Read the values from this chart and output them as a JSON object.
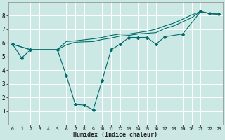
{
  "xlabel": "Humidex (Indice chaleur)",
  "bg_color": "#cce8e4",
  "line_color": "#006b6b",
  "grid_color": "#ffffff",
  "xlim": [
    -0.5,
    23.5
  ],
  "ylim": [
    0,
    9
  ],
  "xticks": [
    0,
    1,
    2,
    3,
    4,
    5,
    6,
    7,
    8,
    9,
    10,
    11,
    12,
    13,
    14,
    15,
    16,
    17,
    18,
    19,
    20,
    21,
    22,
    23
  ],
  "yticks": [
    1,
    2,
    3,
    4,
    5,
    6,
    7,
    8
  ],
  "line_smooth_x": [
    0,
    2,
    5,
    6,
    7,
    9,
    10,
    11,
    12,
    13,
    14,
    15,
    16,
    17,
    18,
    19,
    20,
    21,
    22,
    23
  ],
  "line_smooth_y": [
    5.9,
    5.5,
    5.5,
    5.85,
    6.05,
    6.1,
    6.25,
    6.35,
    6.5,
    6.55,
    6.65,
    6.7,
    6.75,
    7.05,
    7.25,
    7.55,
    7.85,
    8.3,
    8.15,
    8.1
  ],
  "line_upper_x": [
    0,
    2,
    5,
    6,
    7,
    9,
    10,
    11,
    12,
    13,
    14,
    15,
    16,
    17,
    18,
    19,
    20,
    21,
    22,
    23
  ],
  "line_upper_y": [
    5.9,
    5.5,
    5.5,
    6.1,
    6.15,
    6.3,
    6.4,
    6.55,
    6.65,
    6.65,
    6.75,
    6.85,
    7.0,
    7.25,
    7.45,
    7.75,
    8.05,
    8.3,
    8.15,
    8.1
  ],
  "line_zigzag_x": [
    0,
    1,
    2,
    5,
    6,
    7,
    8,
    9,
    10,
    11,
    12,
    13,
    14,
    15,
    16,
    17,
    19,
    21,
    22,
    23
  ],
  "line_zigzag_y": [
    5.9,
    4.9,
    5.5,
    5.5,
    3.6,
    1.5,
    1.45,
    1.1,
    3.25,
    5.5,
    5.9,
    6.4,
    6.4,
    6.4,
    5.9,
    6.45,
    6.65,
    8.3,
    8.15,
    8.1
  ],
  "markers_x": [
    0,
    1,
    2,
    5,
    6,
    7,
    8,
    9,
    10,
    11,
    12,
    13,
    14,
    15,
    16,
    17,
    19,
    21,
    22,
    23
  ],
  "markers_y": [
    5.9,
    4.9,
    5.5,
    5.5,
    3.6,
    1.5,
    1.45,
    1.1,
    3.25,
    5.5,
    5.9,
    6.4,
    6.4,
    6.4,
    5.9,
    6.45,
    6.65,
    8.3,
    8.15,
    8.1
  ]
}
